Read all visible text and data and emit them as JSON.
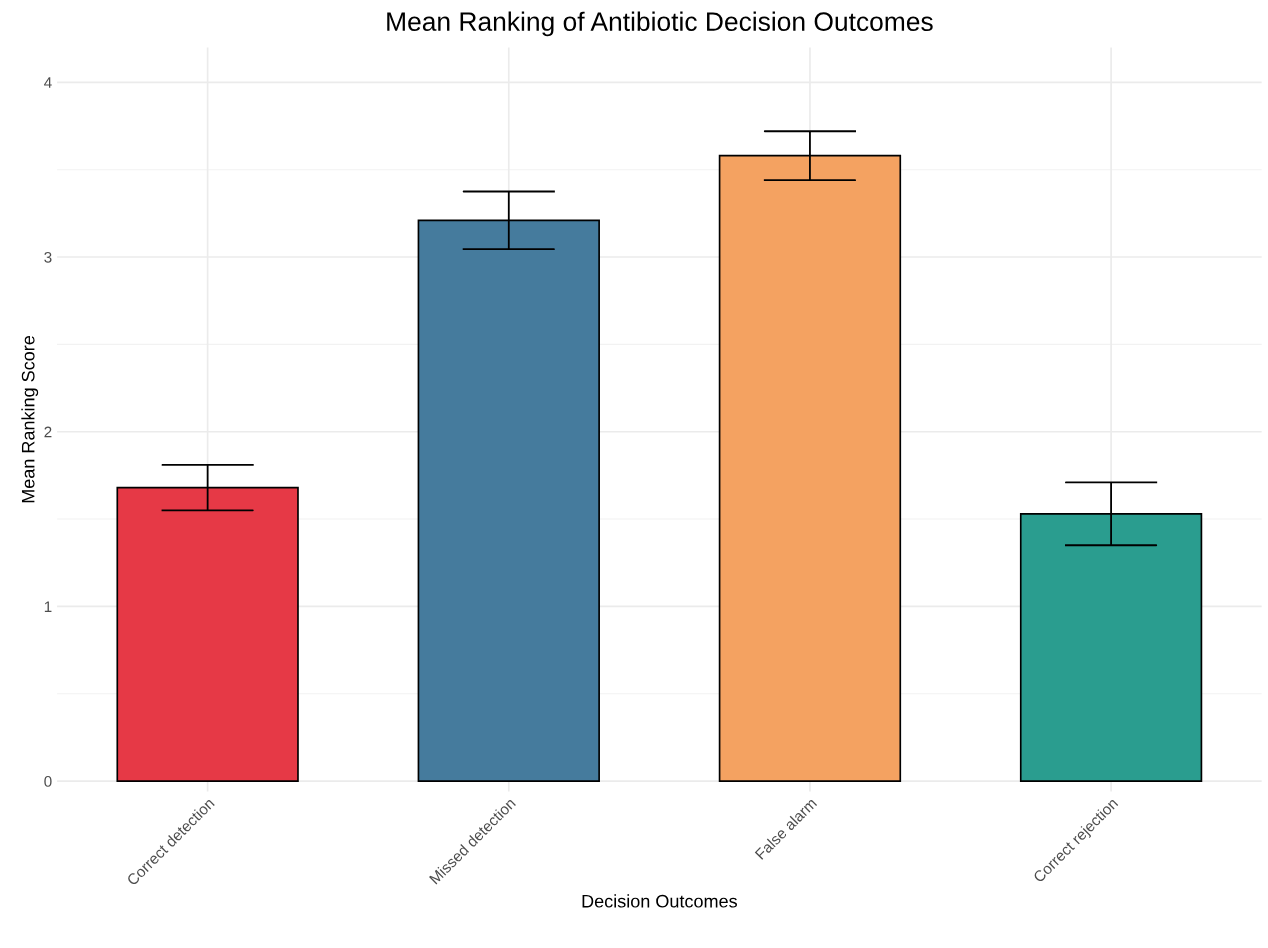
{
  "chart_data": {
    "type": "bar",
    "title": "Mean Ranking of Antibiotic Decision Outcomes",
    "xlabel": "Decision Outcomes",
    "ylabel": "Mean Ranking Score",
    "categories": [
      "Correct detection",
      "Missed detection",
      "False alarm",
      "Correct rejection"
    ],
    "values": [
      1.68,
      3.21,
      3.58,
      1.53
    ],
    "errors": [
      [
        1.55,
        1.81
      ],
      [
        3.045,
        3.375
      ],
      [
        3.44,
        3.72
      ],
      [
        1.35,
        1.71
      ]
    ],
    "colors": [
      "#e63946",
      "#457b9d",
      "#f4a261",
      "#2a9d8f"
    ],
    "ylim": [
      -0.06,
      4.2
    ],
    "yticks": [
      0,
      1,
      2,
      3,
      4
    ],
    "grid": true
  }
}
